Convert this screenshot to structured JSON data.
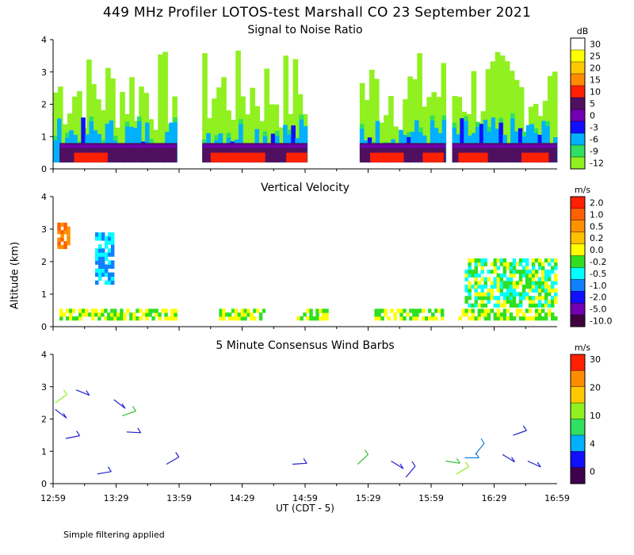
{
  "header": {
    "title": "449 MHz Profiler LOTOS-test Marshall CO 23 September 2021"
  },
  "yaxis_label": "Altitude (km)",
  "xaxis_label": "UT (CDT - 5)",
  "footer_note": "Simple filtering applied",
  "x_ticks": [
    "12:59",
    "13:29",
    "13:59",
    "14:29",
    "14:59",
    "15:29",
    "15:59",
    "16:29",
    "16:59"
  ],
  "colors": {
    "white": "#ffffff",
    "yellow": "#ffff00",
    "gold": "#ffc800",
    "orange": "#ff8c00",
    "red": "#ff2000",
    "darkpurple": "#501060",
    "purple": "#7000b0",
    "blue": "#1010ff",
    "skyblue": "#00b0ff",
    "green": "#30e060",
    "lightgreen": "#90f020"
  },
  "chart_data": [
    {
      "type": "heatmap",
      "title": "Signal to Noise Ratio",
      "unit": "dB",
      "ylim": [
        0,
        4
      ],
      "y_ticks": [
        0,
        1,
        2,
        3,
        4
      ],
      "xlim": [
        "12:59",
        "16:59"
      ],
      "legend": {
        "labels": [
          "30",
          "25",
          "20",
          "15",
          "10",
          "5",
          "0",
          "-3",
          "-6",
          "-9",
          "-12"
        ],
        "colors": [
          "#ffffff",
          "#ffff00",
          "#ffc800",
          "#ff8c00",
          "#ff2000",
          "#501060",
          "#7000b0",
          "#1010ff",
          "#00b0ff",
          "#30e060",
          "#90f020"
        ]
      },
      "data_gaps_ut": [
        [
          "13:59",
          "14:09"
        ],
        [
          "15:22",
          "15:25"
        ],
        [
          "16:06",
          "16:09"
        ]
      ],
      "layers": [
        {
          "name": "10 to 15 dB",
          "altitude_km": [
            0.2,
            0.5
          ],
          "periods_ut": [
            [
              "13:09",
              "13:25"
            ],
            [
              "14:14",
              "14:40"
            ],
            [
              "14:50",
              "15:00"
            ],
            [
              "15:30",
              "15:46"
            ],
            [
              "15:55",
              "16:05"
            ],
            [
              "16:12",
              "16:26"
            ],
            [
              "16:42",
              "16:55"
            ]
          ]
        },
        {
          "name": "5 dB",
          "altitude_km": [
            0.2,
            0.8
          ],
          "periods_ut": [
            [
              "13:02",
              "13:58"
            ],
            [
              "14:10",
              "15:00"
            ],
            [
              "15:25",
              "16:06"
            ],
            [
              "16:09",
              "16:59"
            ]
          ]
        },
        {
          "name": "-6 to 0 dB",
          "altitude_km": [
            0.2,
            1.6
          ],
          "periods_ut": [
            [
              "12:59",
              "13:58"
            ],
            [
              "14:10",
              "15:00"
            ],
            [
              "15:25",
              "16:06"
            ],
            [
              "16:09",
              "16:59"
            ]
          ]
        },
        {
          "name": "-12 to -9 dB",
          "altitude_km": [
            0.2,
            3.7
          ],
          "periods_ut": [
            [
              "12:59",
              "13:58"
            ],
            [
              "14:10",
              "15:00"
            ],
            [
              "15:25",
              "16:06"
            ],
            [
              "16:09",
              "16:59"
            ]
          ]
        }
      ]
    },
    {
      "type": "heatmap",
      "title": "Vertical Velocity",
      "unit": "m/s",
      "ylim": [
        0,
        4
      ],
      "y_ticks": [
        0,
        1,
        2,
        3,
        4
      ],
      "xlim": [
        "12:59",
        "16:59"
      ],
      "legend": {
        "labels": [
          "2.0",
          "1.0",
          "0.5",
          "0.2",
          "0.0",
          "-0.2",
          "-0.5",
          "-1.0",
          "-2.0",
          "-5.0",
          "-10.0"
        ],
        "colors": [
          "#ff2000",
          "#ff6000",
          "#ff9000",
          "#ffc000",
          "#ffff00",
          "#30e020",
          "#00ffff",
          "#1080ff",
          "#1010ff",
          "#7000b0",
          "#400040"
        ]
      },
      "regions": [
        {
          "altitude_km": [
            0.2,
            0.55
          ],
          "periods_ut": [
            [
              "13:02",
              "13:58"
            ],
            [
              "14:18",
              "14:40"
            ],
            [
              "14:55",
              "15:10"
            ],
            [
              "15:32",
              "16:05"
            ],
            [
              "16:12",
              "16:59"
            ]
          ],
          "dominant": [
            "0.0",
            "-0.2"
          ]
        },
        {
          "altitude_km": [
            2.4,
            3.2
          ],
          "periods_ut": [
            [
              "13:01",
              "13:07"
            ]
          ],
          "dominant": [
            "1.0",
            "0.5"
          ]
        },
        {
          "altitude_km": [
            1.3,
            2.9
          ],
          "periods_ut": [
            [
              "13:19",
              "13:28"
            ]
          ],
          "dominant": [
            "-0.5",
            "-1.0"
          ]
        },
        {
          "altitude_km": [
            0.6,
            2.1
          ],
          "periods_ut": [
            [
              "16:15",
              "16:59"
            ]
          ],
          "dominant": [
            "-0.5",
            "-0.2",
            "0.0"
          ]
        }
      ]
    },
    {
      "type": "scatter",
      "title": "5 Minute Consensus Wind Barbs",
      "unit": "m/s",
      "ylim": [
        0,
        4
      ],
      "y_ticks": [
        0,
        1,
        2,
        3,
        4
      ],
      "xlim": [
        "12:59",
        "16:59"
      ],
      "legend": {
        "labels": [
          "30",
          "20",
          "10",
          "4",
          "0"
        ],
        "colors": [
          "#ff2000",
          "#ff8c00",
          "#ffc800",
          "#90f020",
          "#30e060",
          "#00b0ff",
          "#1010ff",
          "#400050"
        ]
      },
      "barbs": [
        {
          "time": "13:00",
          "alt_km": 2.5,
          "speed": 8,
          "color": "#90f020"
        },
        {
          "time": "13:00",
          "alt_km": 2.3,
          "speed": 3,
          "color": "#2020d0"
        },
        {
          "time": "13:05",
          "alt_km": 1.4,
          "speed": 3,
          "color": "#2020d0"
        },
        {
          "time": "13:10",
          "alt_km": 2.9,
          "speed": 3,
          "color": "#2020d0"
        },
        {
          "time": "13:20",
          "alt_km": 0.3,
          "speed": 3,
          "color": "#2020d0"
        },
        {
          "time": "13:28",
          "alt_km": 2.6,
          "speed": 3,
          "color": "#2020d0"
        },
        {
          "time": "13:32",
          "alt_km": 2.1,
          "speed": 6,
          "color": "#30c030"
        },
        {
          "time": "13:34",
          "alt_km": 1.6,
          "speed": 3,
          "color": "#2020d0"
        },
        {
          "time": "13:53",
          "alt_km": 0.6,
          "speed": 3,
          "color": "#2020d0"
        },
        {
          "time": "14:53",
          "alt_km": 0.6,
          "speed": 3,
          "color": "#2020d0"
        },
        {
          "time": "15:24",
          "alt_km": 0.6,
          "speed": 6,
          "color": "#30c030"
        },
        {
          "time": "15:40",
          "alt_km": 0.7,
          "speed": 3,
          "color": "#2020d0"
        },
        {
          "time": "15:47",
          "alt_km": 0.2,
          "speed": 3,
          "color": "#2020d0"
        },
        {
          "time": "16:06",
          "alt_km": 0.7,
          "speed": 6,
          "color": "#30c030"
        },
        {
          "time": "16:11",
          "alt_km": 0.3,
          "speed": 9,
          "color": "#90f020"
        },
        {
          "time": "16:15",
          "alt_km": 0.8,
          "speed": 4,
          "color": "#1080e0"
        },
        {
          "time": "16:20",
          "alt_km": 0.9,
          "speed": 4,
          "color": "#1080e0"
        },
        {
          "time": "16:33",
          "alt_km": 0.9,
          "speed": 3,
          "color": "#2020d0"
        },
        {
          "time": "16:38",
          "alt_km": 1.5,
          "speed": 3,
          "color": "#2020d0"
        },
        {
          "time": "16:45",
          "alt_km": 0.7,
          "speed": 3,
          "color": "#2020d0"
        }
      ]
    }
  ]
}
